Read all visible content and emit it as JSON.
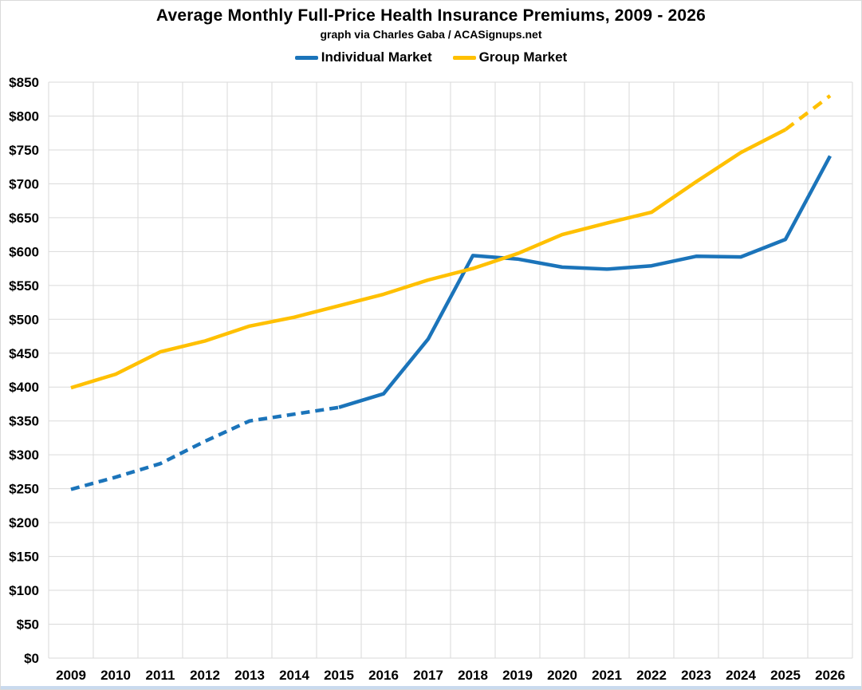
{
  "chart": {
    "title": "Average Monthly Full-Price Health Insurance Premiums, 2009 - 2026",
    "subtitle": "graph via Charles Gaba / ACASignups.net"
  },
  "chart_data": {
    "type": "line",
    "x": [
      "2009",
      "2010",
      "2011",
      "2012",
      "2013",
      "2014",
      "2015",
      "2016",
      "2017",
      "2018",
      "2019",
      "2020",
      "2021",
      "2022",
      "2023",
      "2024",
      "2025",
      "2026"
    ],
    "series": [
      {
        "name": "Individual Market",
        "color": "#1B74BA",
        "values": [
          249,
          267,
          287,
          320,
          350,
          360,
          370,
          390,
          471,
          594,
          589,
          577,
          574,
          579,
          593,
          592,
          618,
          741
        ],
        "dashed_ranges": [
          [
            0,
            6
          ]
        ],
        "dash_pattern": "11 7"
      },
      {
        "name": "Group Market",
        "color": "#FFC000",
        "values": [
          399,
          419,
          452,
          468,
          490,
          503,
          520,
          537,
          558,
          575,
          597,
          625,
          642,
          658,
          703,
          746,
          780,
          830
        ],
        "dashed_ranges": [
          [
            16,
            17
          ]
        ],
        "dash_pattern": "13 9"
      }
    ],
    "title": "Average Monthly Full-Price Health Insurance Premiums, 2009 - 2026",
    "subtitle": "graph via Charles Gaba / ACASignups.net",
    "xlabel": "",
    "ylabel": "",
    "ylim": [
      0,
      850
    ],
    "ytick_step": 50,
    "ytick_labels": [
      "$0",
      "$50",
      "$100",
      "$150",
      "$200",
      "$250",
      "$300",
      "$350",
      "$400",
      "$450",
      "$500",
      "$550",
      "$600",
      "$650",
      "$700",
      "$750",
      "$800",
      "$850"
    ],
    "grid": true,
    "gridline_color": "#dadada",
    "legend_position": "top",
    "line_width": 4.5
  }
}
